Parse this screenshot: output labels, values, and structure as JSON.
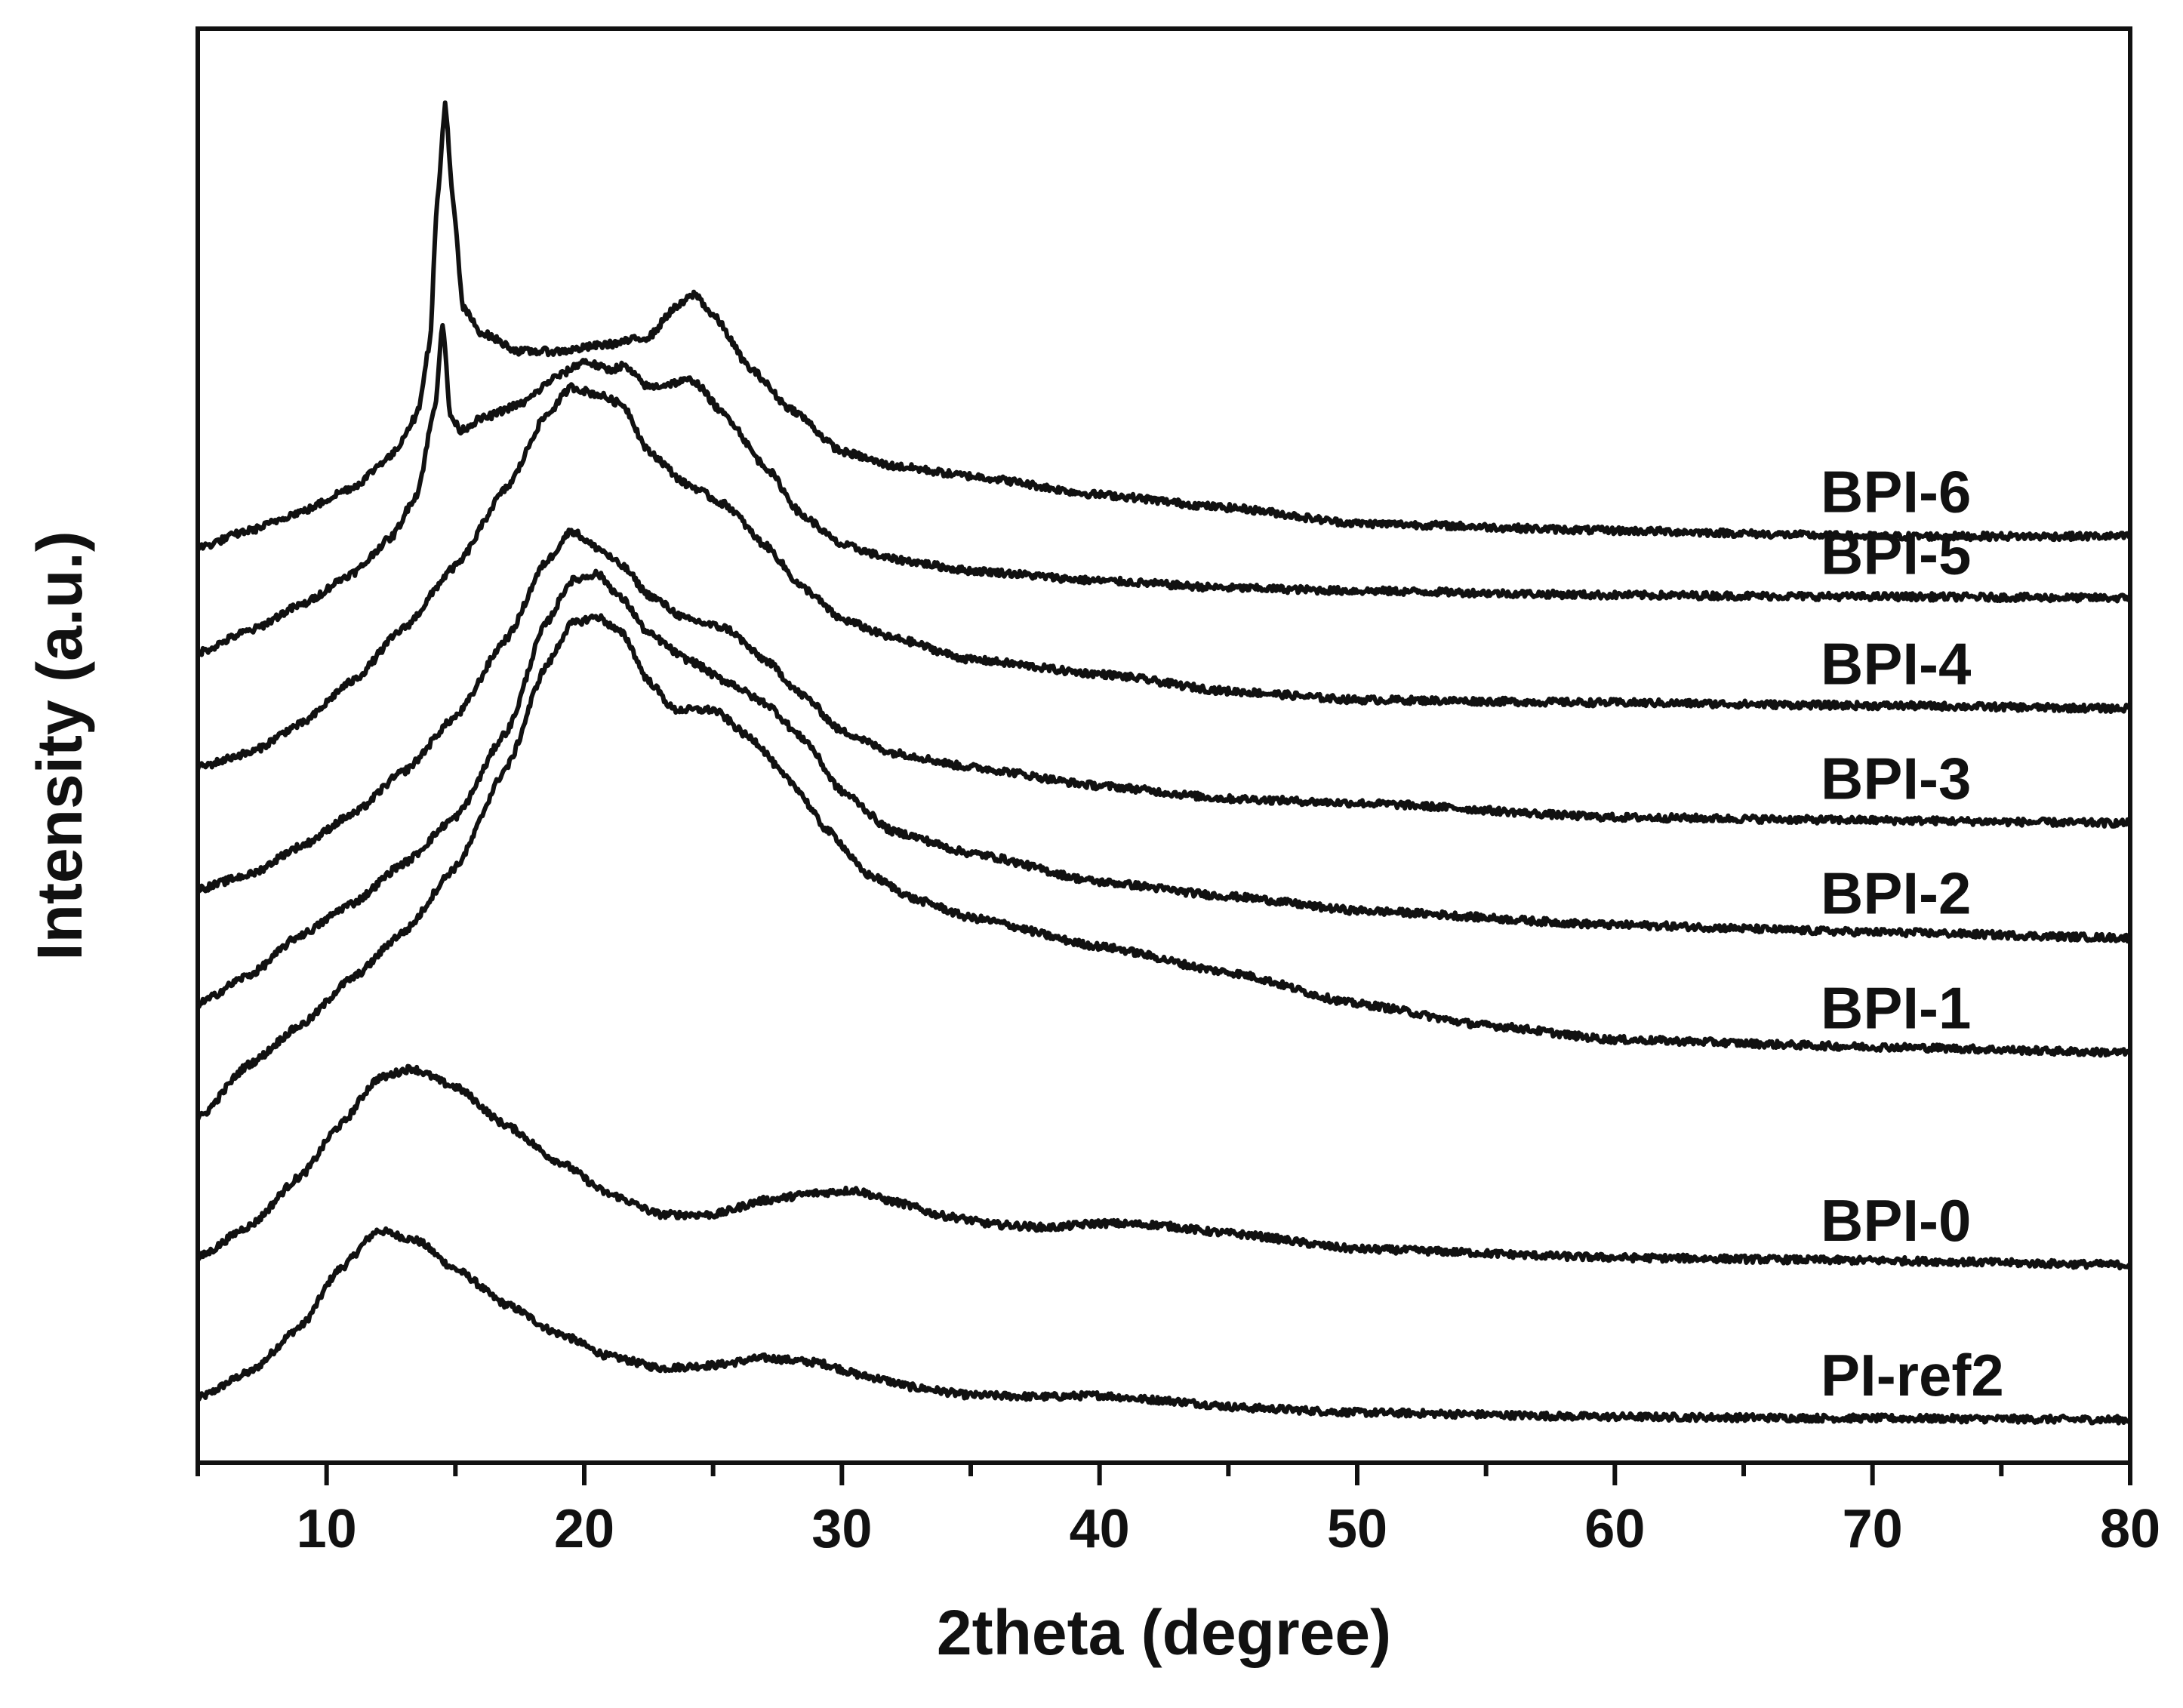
{
  "chart_data": {
    "type": "line",
    "title": "",
    "xlabel": "2theta (degree)",
    "ylabel": "Intensity (a.u.)",
    "xlim": [
      5,
      80
    ],
    "ylim": [
      0,
      10
    ],
    "x_ticks": [
      10,
      20,
      30,
      40,
      50,
      60,
      70,
      80
    ],
    "x_tick_labels": [
      "10",
      "20",
      "30",
      "40",
      "50",
      "60",
      "70",
      "80"
    ],
    "y_ticks_shown": false,
    "grid": false,
    "stacked_offset_traces": true,
    "series": [
      {
        "name": "PI-ref2",
        "label": "PI-ref2",
        "points": [
          [
            5,
            0.45
          ],
          [
            7,
            0.63
          ],
          [
            9,
            0.95
          ],
          [
            10.5,
            1.35
          ],
          [
            12,
            1.62
          ],
          [
            13.5,
            1.55
          ],
          [
            15,
            1.35
          ],
          [
            17,
            1.1
          ],
          [
            19,
            0.9
          ],
          [
            21,
            0.74
          ],
          [
            23,
            0.66
          ],
          [
            25,
            0.68
          ],
          [
            27,
            0.73
          ],
          [
            29,
            0.7
          ],
          [
            31,
            0.6
          ],
          [
            33,
            0.52
          ],
          [
            35,
            0.47
          ],
          [
            38,
            0.46
          ],
          [
            40,
            0.47
          ],
          [
            42,
            0.44
          ],
          [
            46,
            0.38
          ],
          [
            50,
            0.35
          ],
          [
            60,
            0.32
          ],
          [
            70,
            0.31
          ],
          [
            80,
            0.3
          ]
        ]
      },
      {
        "name": "BPI-0",
        "label": "BPI-0",
        "points": [
          [
            5,
            1.43
          ],
          [
            7,
            1.65
          ],
          [
            9,
            2.0
          ],
          [
            10.5,
            2.35
          ],
          [
            12,
            2.68
          ],
          [
            13.3,
            2.75
          ],
          [
            15,
            2.62
          ],
          [
            17,
            2.35
          ],
          [
            19,
            2.1
          ],
          [
            21,
            1.87
          ],
          [
            23,
            1.73
          ],
          [
            25,
            1.73
          ],
          [
            27,
            1.83
          ],
          [
            29,
            1.88
          ],
          [
            30.5,
            1.9
          ],
          [
            32,
            1.82
          ],
          [
            34,
            1.72
          ],
          [
            36,
            1.66
          ],
          [
            38,
            1.64
          ],
          [
            40,
            1.67
          ],
          [
            42,
            1.66
          ],
          [
            45,
            1.6
          ],
          [
            50,
            1.49
          ],
          [
            60,
            1.43
          ],
          [
            70,
            1.41
          ],
          [
            80,
            1.38
          ]
        ]
      },
      {
        "name": "BPI-1",
        "label": "BPI-1",
        "points": [
          [
            5,
            2.4
          ],
          [
            7,
            2.78
          ],
          [
            9,
            3.05
          ],
          [
            11,
            3.38
          ],
          [
            13,
            3.7
          ],
          [
            15,
            4.15
          ],
          [
            17,
            4.85
          ],
          [
            18.5,
            5.55
          ],
          [
            19.5,
            5.85
          ],
          [
            20.5,
            5.9
          ],
          [
            21.5,
            5.78
          ],
          [
            22.5,
            5.45
          ],
          [
            23.5,
            5.25
          ],
          [
            25,
            5.25
          ],
          [
            26.5,
            5.05
          ],
          [
            28,
            4.75
          ],
          [
            29.5,
            4.4
          ],
          [
            31,
            4.1
          ],
          [
            33,
            3.92
          ],
          [
            35,
            3.8
          ],
          [
            40,
            3.6
          ],
          [
            45,
            3.42
          ],
          [
            50,
            3.2
          ],
          [
            55,
            3.05
          ],
          [
            60,
            2.95
          ],
          [
            70,
            2.9
          ],
          [
            80,
            2.86
          ]
        ]
      },
      {
        "name": "BPI-2",
        "label": "BPI-2",
        "points": [
          [
            5,
            3.2
          ],
          [
            7,
            3.4
          ],
          [
            9,
            3.68
          ],
          [
            11,
            3.9
          ],
          [
            13,
            4.18
          ],
          [
            15,
            4.5
          ],
          [
            17,
            5.1
          ],
          [
            18.5,
            5.85
          ],
          [
            19.5,
            6.15
          ],
          [
            20.5,
            6.2
          ],
          [
            21.5,
            6.02
          ],
          [
            22.5,
            5.78
          ],
          [
            24,
            5.6
          ],
          [
            25.5,
            5.45
          ],
          [
            27,
            5.3
          ],
          [
            28.5,
            5.05
          ],
          [
            30,
            4.68
          ],
          [
            32,
            4.4
          ],
          [
            35,
            4.25
          ],
          [
            40,
            4.05
          ],
          [
            45,
            3.95
          ],
          [
            50,
            3.85
          ],
          [
            60,
            3.75
          ],
          [
            70,
            3.7
          ],
          [
            80,
            3.66
          ]
        ]
      },
      {
        "name": "BPI-3",
        "label": "BPI-3",
        "points": [
          [
            5,
            4.0
          ],
          [
            7,
            4.1
          ],
          [
            9,
            4.3
          ],
          [
            11,
            4.52
          ],
          [
            13,
            4.82
          ],
          [
            15,
            5.2
          ],
          [
            17,
            5.75
          ],
          [
            18.5,
            6.28
          ],
          [
            19.5,
            6.5
          ],
          [
            20.5,
            6.38
          ],
          [
            21.5,
            6.25
          ],
          [
            22.5,
            6.05
          ],
          [
            24,
            5.88
          ],
          [
            25.5,
            5.82
          ],
          [
            27,
            5.6
          ],
          [
            28.5,
            5.35
          ],
          [
            30,
            5.1
          ],
          [
            32,
            4.95
          ],
          [
            35,
            4.85
          ],
          [
            40,
            4.72
          ],
          [
            45,
            4.63
          ],
          [
            50,
            4.6
          ],
          [
            60,
            4.5
          ],
          [
            70,
            4.48
          ],
          [
            80,
            4.46
          ]
        ]
      },
      {
        "name": "BPI-4",
        "label": "BPI-4",
        "points": [
          [
            5,
            4.85
          ],
          [
            7,
            4.95
          ],
          [
            9,
            5.15
          ],
          [
            11,
            5.45
          ],
          [
            13,
            5.82
          ],
          [
            15,
            6.25
          ],
          [
            17,
            6.8
          ],
          [
            18.5,
            7.3
          ],
          [
            19.5,
            7.5
          ],
          [
            20.5,
            7.45
          ],
          [
            21.5,
            7.38
          ],
          [
            22.5,
            7.05
          ],
          [
            24,
            6.82
          ],
          [
            25.5,
            6.68
          ],
          [
            27,
            6.4
          ],
          [
            28.5,
            6.1
          ],
          [
            30,
            5.88
          ],
          [
            32,
            5.75
          ],
          [
            35,
            5.6
          ],
          [
            40,
            5.5
          ],
          [
            45,
            5.38
          ],
          [
            50,
            5.32
          ],
          [
            60,
            5.3
          ],
          [
            70,
            5.28
          ],
          [
            80,
            5.26
          ]
        ]
      },
      {
        "name": "BPI-5",
        "label": "BPI-5",
        "points": [
          [
            5,
            5.65
          ],
          [
            7,
            5.8
          ],
          [
            9,
            5.98
          ],
          [
            11,
            6.2
          ],
          [
            12.5,
            6.45
          ],
          [
            13.5,
            6.75
          ],
          [
            14.2,
            7.35
          ],
          [
            14.5,
            7.95
          ],
          [
            14.8,
            7.3
          ],
          [
            15.2,
            7.2
          ],
          [
            16,
            7.28
          ],
          [
            17.5,
            7.38
          ],
          [
            19,
            7.58
          ],
          [
            20,
            7.68
          ],
          [
            21,
            7.62
          ],
          [
            21.5,
            7.65
          ],
          [
            22.5,
            7.5
          ],
          [
            24.2,
            7.55
          ],
          [
            25.5,
            7.3
          ],
          [
            27,
            6.95
          ],
          [
            28.5,
            6.6
          ],
          [
            30,
            6.4
          ],
          [
            32,
            6.3
          ],
          [
            35,
            6.22
          ],
          [
            40,
            6.15
          ],
          [
            45,
            6.1
          ],
          [
            50,
            6.08
          ],
          [
            60,
            6.05
          ],
          [
            70,
            6.04
          ],
          [
            80,
            6.03
          ]
        ]
      },
      {
        "name": "BPI-6",
        "label": "BPI-6",
        "points": [
          [
            5,
            6.38
          ],
          [
            7,
            6.5
          ],
          [
            9,
            6.63
          ],
          [
            11,
            6.8
          ],
          [
            12.5,
            7.02
          ],
          [
            13.5,
            7.3
          ],
          [
            14,
            7.8
          ],
          [
            14.3,
            8.8
          ],
          [
            14.6,
            9.48
          ],
          [
            14.9,
            8.8
          ],
          [
            15.3,
            8.05
          ],
          [
            16,
            7.88
          ],
          [
            17.5,
            7.75
          ],
          [
            19,
            7.75
          ],
          [
            21,
            7.8
          ],
          [
            22.5,
            7.85
          ],
          [
            23.5,
            8.05
          ],
          [
            24.3,
            8.15
          ],
          [
            25,
            8.0
          ],
          [
            26.5,
            7.62
          ],
          [
            28,
            7.35
          ],
          [
            30,
            7.05
          ],
          [
            32,
            6.95
          ],
          [
            35,
            6.88
          ],
          [
            40,
            6.75
          ],
          [
            45,
            6.66
          ],
          [
            50,
            6.55
          ],
          [
            60,
            6.5
          ],
          [
            70,
            6.46
          ],
          [
            80,
            6.46
          ]
        ]
      }
    ]
  }
}
